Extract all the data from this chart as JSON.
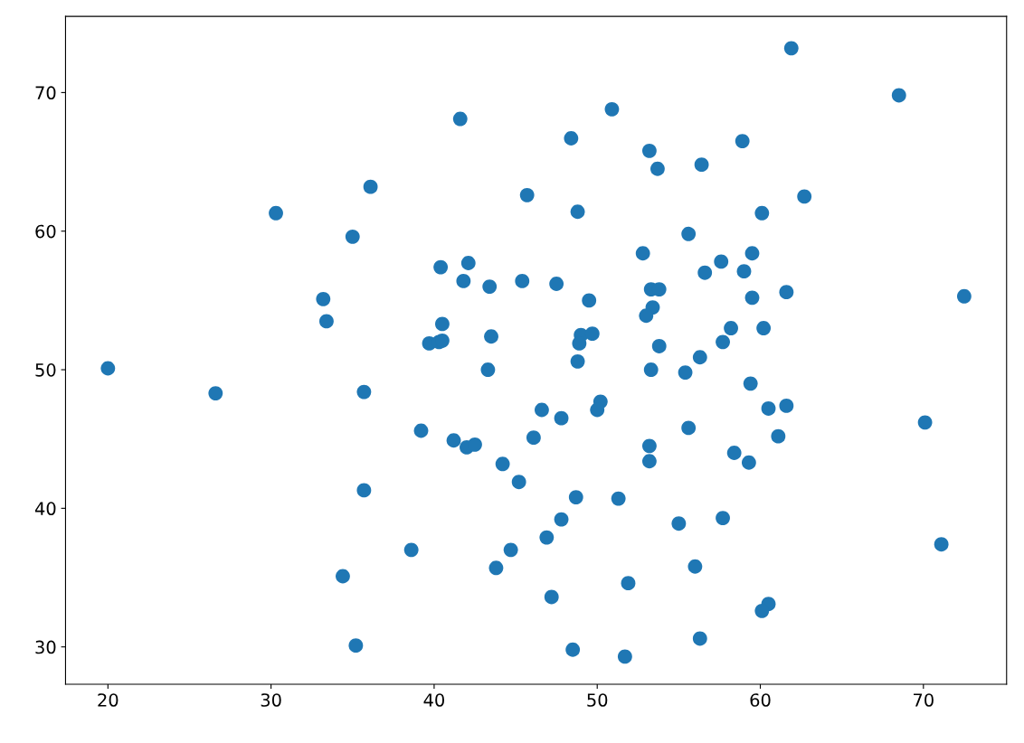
{
  "chart_data": {
    "type": "scatter",
    "marker": "circle",
    "grid": false,
    "xlim": [
      17.4,
      75.1
    ],
    "ylim": [
      27.3,
      75.5
    ],
    "xticks": [
      20,
      30,
      40,
      50,
      60,
      70
    ],
    "yticks": [
      30,
      40,
      50,
      60,
      70
    ],
    "series": [
      {
        "color": "#1f77b4",
        "x": [
          20.0,
          26.6,
          30.3,
          33.2,
          33.4,
          35.0,
          36.1,
          35.7,
          35.7,
          34.4,
          35.2,
          38.6,
          39.2,
          39.7,
          40.3,
          40.5,
          40.5,
          40.4,
          41.6,
          41.8,
          42.1,
          41.2,
          42.0,
          42.5,
          43.4,
          43.5,
          43.3,
          44.2,
          45.2,
          44.7,
          43.8,
          45.4,
          45.7,
          47.5,
          46.6,
          46.1,
          47.8,
          47.8,
          46.9,
          47.2,
          48.4,
          48.8,
          49.5,
          49.0,
          49.7,
          48.9,
          48.8,
          50.2,
          50.0,
          48.7,
          48.5,
          50.9,
          51.3,
          51.9,
          51.7,
          52.8,
          53.2,
          53.7,
          53.3,
          53.8,
          53.4,
          53.0,
          53.8,
          53.3,
          53.2,
          53.2,
          55.0,
          55.4,
          55.6,
          56.0,
          56.3,
          55.6,
          56.4,
          56.6,
          56.3,
          57.6,
          57.7,
          57.7,
          58.2,
          58.4,
          58.9,
          59.0,
          59.5,
          59.5,
          59.4,
          59.3,
          60.1,
          60.2,
          60.5,
          60.5,
          60.1,
          61.1,
          61.6,
          61.6,
          61.9,
          62.7,
          68.5,
          70.1,
          71.1,
          72.5
        ],
        "values": [
          50.1,
          48.3,
          61.3,
          55.1,
          53.5,
          59.6,
          63.2,
          48.4,
          41.3,
          35.1,
          30.1,
          37.0,
          45.6,
          51.9,
          52.0,
          52.1,
          53.3,
          57.4,
          68.1,
          56.4,
          57.7,
          44.9,
          44.4,
          44.6,
          56.0,
          52.4,
          50.0,
          43.2,
          41.9,
          37.0,
          35.7,
          56.4,
          62.6,
          56.2,
          47.1,
          45.1,
          46.5,
          39.2,
          37.9,
          33.6,
          66.7,
          61.4,
          55.0,
          52.5,
          52.6,
          51.9,
          50.6,
          47.7,
          47.1,
          40.8,
          29.8,
          68.8,
          40.7,
          34.6,
          29.3,
          58.4,
          65.8,
          64.5,
          55.8,
          55.8,
          54.5,
          53.9,
          51.7,
          50.0,
          44.5,
          43.4,
          38.9,
          49.8,
          45.8,
          35.8,
          30.6,
          59.8,
          64.8,
          57.0,
          50.9,
          57.8,
          52.0,
          39.3,
          53.0,
          44.0,
          66.5,
          57.1,
          58.4,
          55.2,
          49.0,
          43.3,
          61.3,
          53.0,
          47.2,
          33.1,
          32.6,
          45.2,
          47.4,
          55.6,
          73.2,
          62.5,
          69.8,
          46.2,
          37.4,
          55.3
        ]
      }
    ]
  }
}
